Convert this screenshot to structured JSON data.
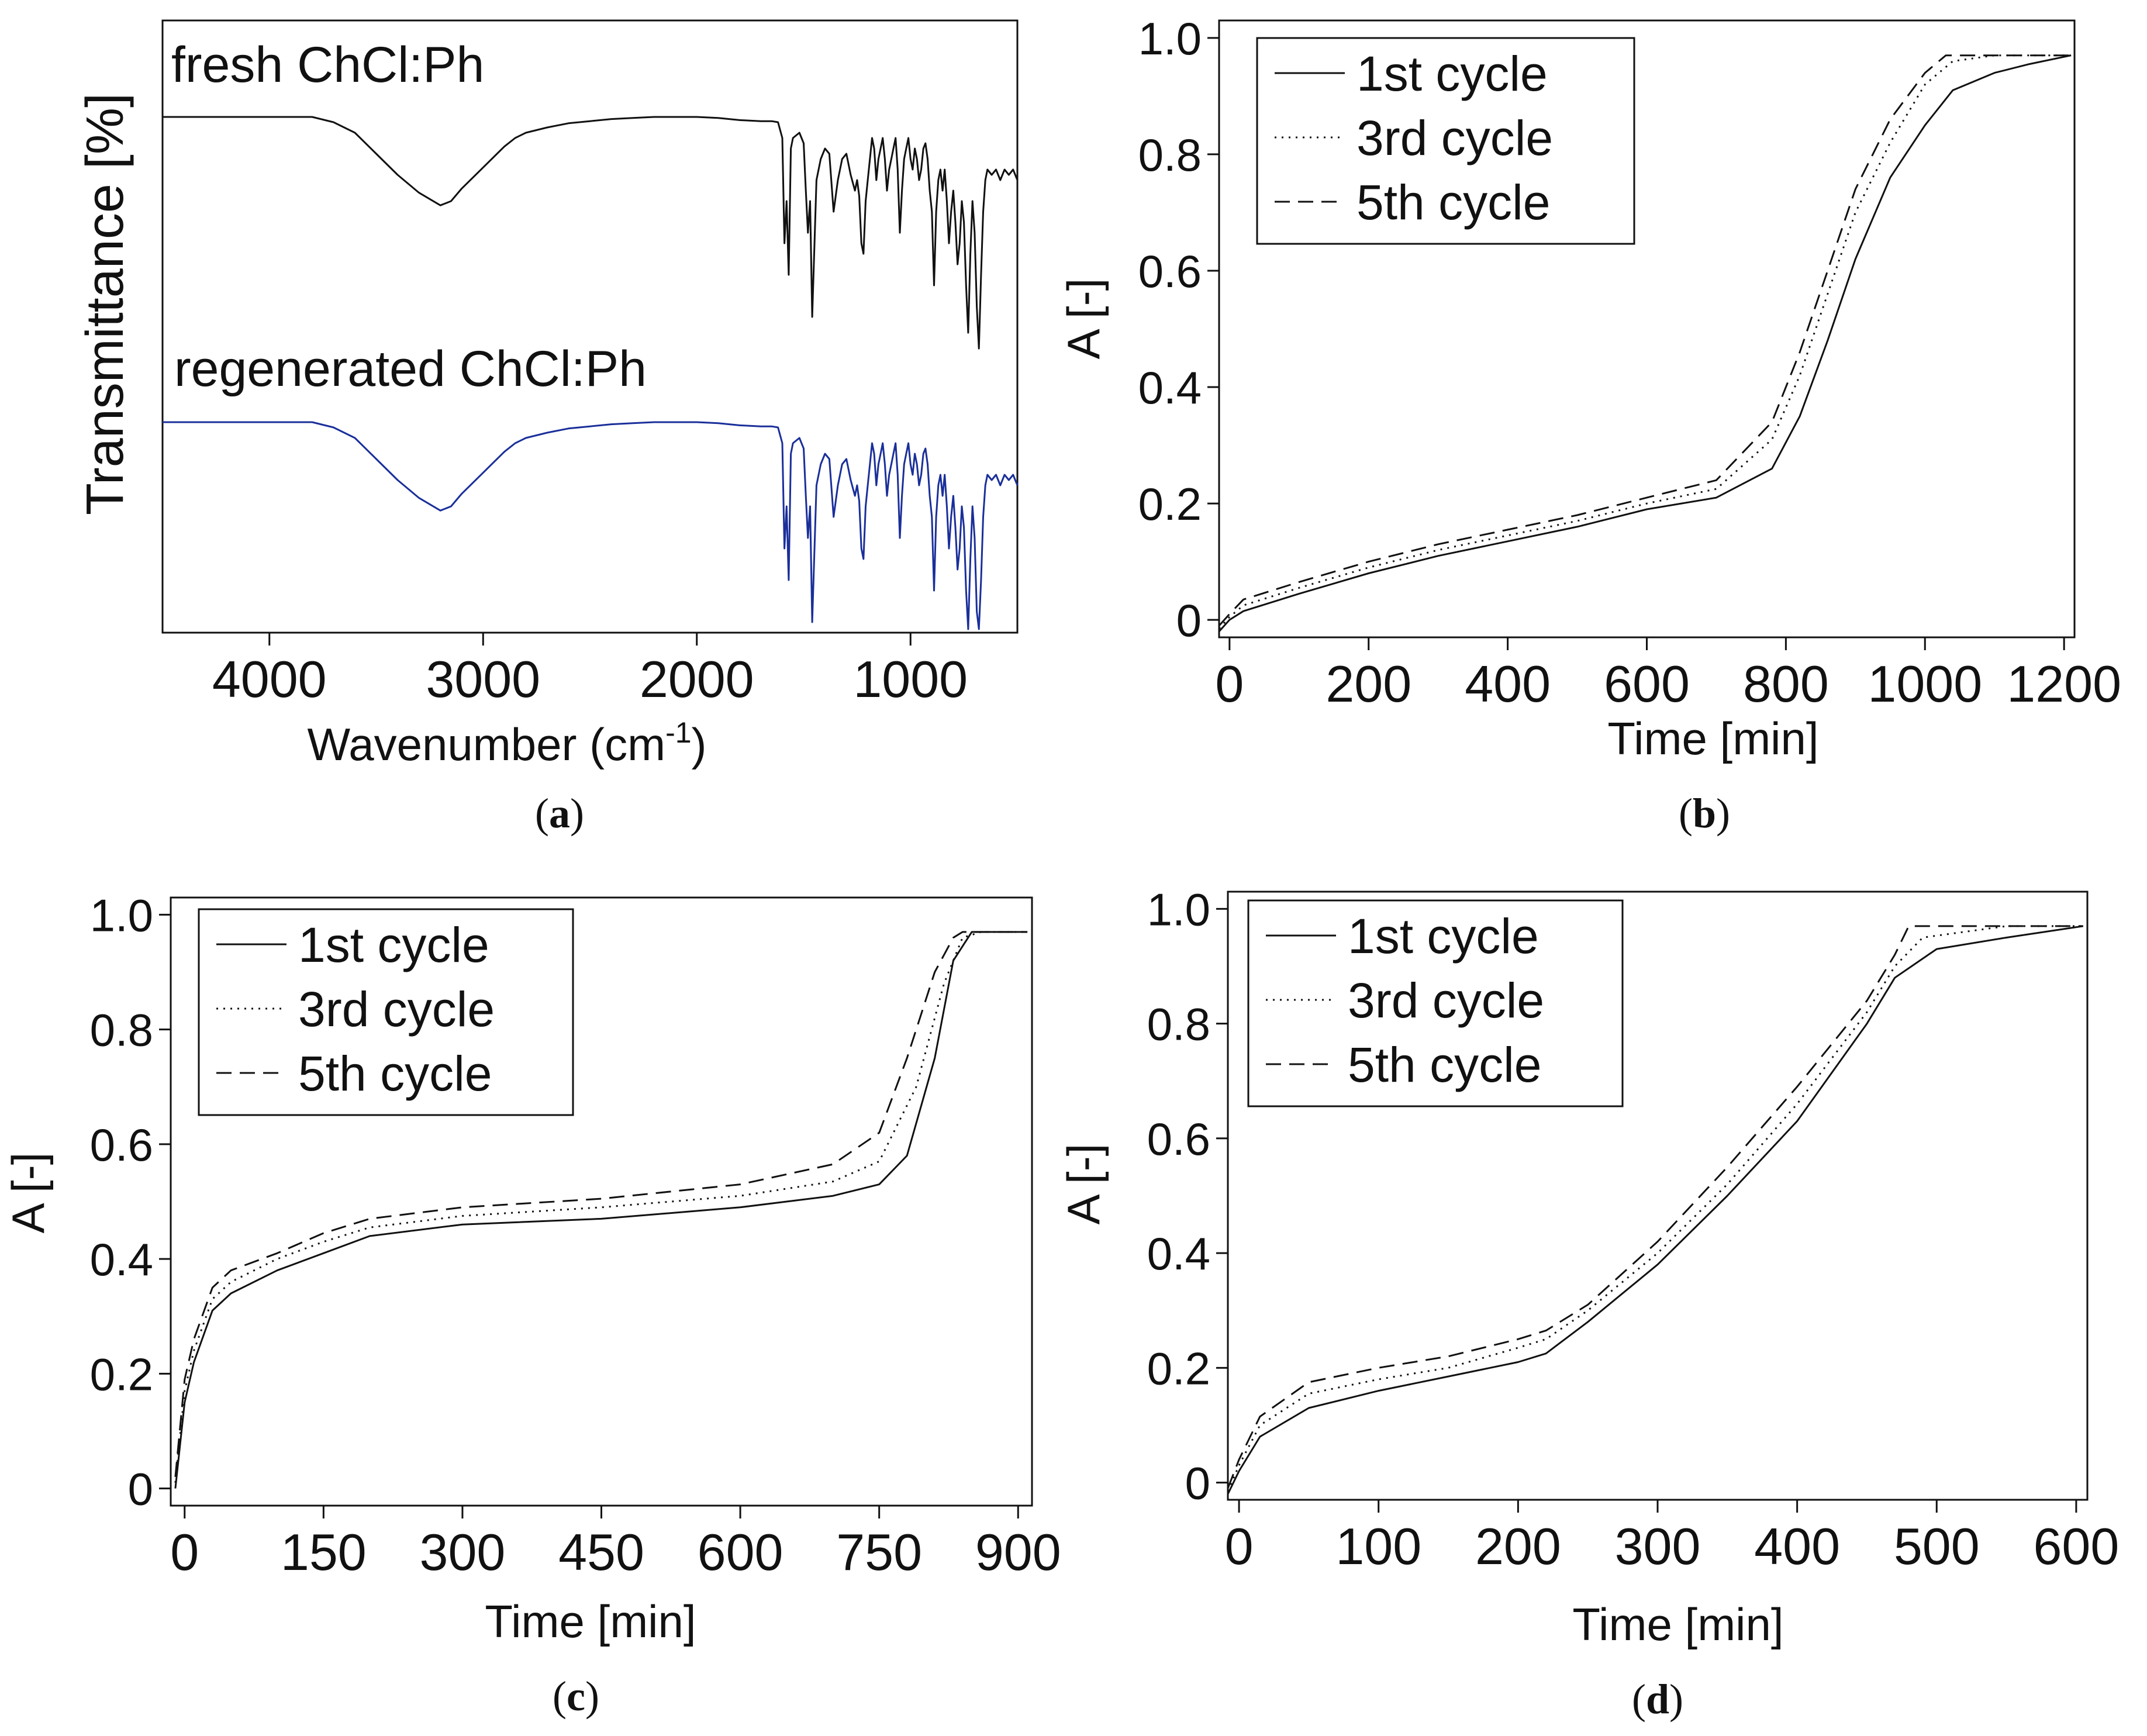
{
  "colors": {
    "axis": "#111111",
    "fresh": "#111111",
    "regenerated": "#1a2f9a",
    "background": "#ffffff"
  },
  "panels": {
    "a": {
      "caption_letter": "a",
      "xlabel": "Wavenumber (cm",
      "xlabel_sup": "-1",
      "xlabel_end": ")",
      "ylabel": "Transmittance [%]"
    },
    "b": {
      "caption_letter": "b",
      "xlabel": "Time [min]",
      "ylabel": "A [-]"
    },
    "c": {
      "caption_letter": "c",
      "xlabel": "Time [min]",
      "ylabel": "A [-]"
    },
    "d": {
      "caption_letter": "d",
      "xlabel": "Time [min]",
      "ylabel": "A [-]"
    }
  },
  "chart_data": [
    {
      "panel": "a",
      "type": "line",
      "x_reversed": true,
      "xlim": [
        4500,
        500
      ],
      "xticks": [
        4000,
        3000,
        2000,
        1000
      ],
      "y_ticks_shown": false,
      "series": [
        {
          "name": "fresh ChCl:Ph",
          "color": "#111111",
          "x": [
            4500,
            4000,
            3800,
            3700,
            3600,
            3500,
            3400,
            3300,
            3200,
            3150,
            3100,
            3050,
            3000,
            2950,
            2900,
            2850,
            2800,
            2700,
            2600,
            2500,
            2400,
            2300,
            2200,
            2100,
            2000,
            1900,
            1800,
            1700,
            1650,
            1620,
            1600,
            1590,
            1580,
            1570,
            1560,
            1550,
            1520,
            1500,
            1490,
            1480,
            1470,
            1460,
            1440,
            1420,
            1400,
            1380,
            1360,
            1340,
            1320,
            1300,
            1280,
            1260,
            1250,
            1240,
            1230,
            1220,
            1210,
            1200,
            1190,
            1180,
            1170,
            1160,
            1150,
            1140,
            1130,
            1120,
            1110,
            1100,
            1090,
            1080,
            1070,
            1060,
            1050,
            1040,
            1030,
            1020,
            1010,
            1000,
            990,
            980,
            970,
            960,
            950,
            940,
            930,
            920,
            910,
            900,
            890,
            880,
            870,
            860,
            850,
            840,
            830,
            820,
            810,
            800,
            790,
            780,
            770,
            760,
            750,
            740,
            730,
            720,
            710,
            700,
            690,
            680,
            670,
            660,
            650,
            640,
            620,
            600,
            580,
            560,
            540,
            520,
            500
          ],
          "values": [
            0.0,
            0.0,
            0.0,
            0.05,
            0.15,
            0.35,
            0.55,
            0.72,
            0.84,
            0.8,
            0.68,
            0.58,
            0.48,
            0.38,
            0.28,
            0.2,
            0.15,
            0.1,
            0.06,
            0.04,
            0.02,
            0.01,
            0.0,
            0.0,
            0.0,
            0.01,
            0.03,
            0.04,
            0.04,
            0.05,
            0.2,
            1.2,
            0.8,
            1.5,
            0.3,
            0.2,
            0.15,
            0.25,
            0.7,
            1.1,
            0.8,
            1.9,
            0.6,
            0.4,
            0.3,
            0.35,
            0.9,
            0.6,
            0.4,
            0.35,
            0.55,
            0.7,
            0.6,
            0.75,
            1.2,
            1.3,
            0.8,
            0.6,
            0.4,
            0.2,
            0.3,
            0.6,
            0.4,
            0.3,
            0.2,
            0.4,
            0.7,
            0.5,
            0.4,
            0.3,
            0.2,
            0.5,
            1.1,
            0.7,
            0.4,
            0.3,
            0.2,
            0.4,
            0.5,
            0.3,
            0.4,
            0.6,
            0.5,
            0.3,
            0.25,
            0.4,
            0.7,
            0.9,
            1.6,
            0.9,
            0.6,
            0.5,
            0.7,
            0.5,
            0.8,
            1.2,
            0.9,
            0.7,
            1.0,
            1.4,
            1.2,
            0.8,
            1.0,
            1.6,
            2.05,
            1.3,
            0.8,
            1.1,
            1.8,
            2.2,
            1.5,
            0.9,
            0.6,
            0.5,
            0.55,
            0.5,
            0.6,
            0.5,
            0.55,
            0.5,
            0.6
          ]
        },
        {
          "name": "regenerated ChCl:Ph",
          "color": "#1a2f9a",
          "x": [
            4500,
            4000,
            3800,
            3700,
            3600,
            3500,
            3400,
            3300,
            3200,
            3150,
            3100,
            3050,
            3000,
            2950,
            2900,
            2850,
            2800,
            2700,
            2600,
            2500,
            2400,
            2300,
            2200,
            2100,
            2000,
            1900,
            1800,
            1700,
            1650,
            1620,
            1600,
            1590,
            1580,
            1570,
            1560,
            1550,
            1520,
            1500,
            1490,
            1480,
            1470,
            1460,
            1440,
            1420,
            1400,
            1380,
            1360,
            1340,
            1320,
            1300,
            1280,
            1260,
            1250,
            1240,
            1230,
            1220,
            1210,
            1200,
            1190,
            1180,
            1170,
            1160,
            1150,
            1140,
            1130,
            1120,
            1110,
            1100,
            1090,
            1080,
            1070,
            1060,
            1050,
            1040,
            1030,
            1020,
            1010,
            1000,
            990,
            980,
            970,
            960,
            950,
            940,
            930,
            920,
            910,
            900,
            890,
            880,
            870,
            860,
            850,
            840,
            830,
            820,
            810,
            800,
            790,
            780,
            770,
            760,
            750,
            740,
            730,
            720,
            710,
            700,
            690,
            680,
            670,
            660,
            650,
            640,
            620,
            600,
            580,
            560,
            540,
            520,
            500
          ],
          "values": [
            0.0,
            0.0,
            0.0,
            0.05,
            0.15,
            0.35,
            0.55,
            0.72,
            0.84,
            0.8,
            0.68,
            0.58,
            0.48,
            0.38,
            0.28,
            0.2,
            0.15,
            0.1,
            0.06,
            0.04,
            0.02,
            0.01,
            0.0,
            0.0,
            0.0,
            0.01,
            0.03,
            0.04,
            0.04,
            0.05,
            0.2,
            1.2,
            0.8,
            1.5,
            0.3,
            0.2,
            0.15,
            0.25,
            0.7,
            1.1,
            0.8,
            1.9,
            0.6,
            0.4,
            0.3,
            0.35,
            0.9,
            0.6,
            0.4,
            0.35,
            0.55,
            0.7,
            0.6,
            0.75,
            1.2,
            1.3,
            0.8,
            0.6,
            0.4,
            0.2,
            0.3,
            0.6,
            0.4,
            0.3,
            0.2,
            0.4,
            0.7,
            0.5,
            0.4,
            0.3,
            0.2,
            0.5,
            1.1,
            0.7,
            0.4,
            0.3,
            0.2,
            0.4,
            0.5,
            0.3,
            0.4,
            0.6,
            0.5,
            0.3,
            0.25,
            0.4,
            0.7,
            0.9,
            1.6,
            0.9,
            0.6,
            0.5,
            0.7,
            0.5,
            0.8,
            1.2,
            0.9,
            0.7,
            1.0,
            1.4,
            1.2,
            0.8,
            1.0,
            1.6,
            2.05,
            1.3,
            0.8,
            1.1,
            1.8,
            2.2,
            1.5,
            0.9,
            0.6,
            0.5,
            0.55,
            0.5,
            0.6,
            0.5,
            0.55,
            0.5,
            0.6
          ]
        }
      ]
    },
    {
      "panel": "b",
      "type": "line",
      "xlim": [
        -15,
        1215
      ],
      "ylim": [
        -0.03,
        1.03
      ],
      "xticks": [
        0,
        200,
        400,
        600,
        800,
        1000,
        1200
      ],
      "yticks": [
        0,
        0.2,
        0.4,
        0.6,
        0.8,
        1.0
      ],
      "ytick_labels": [
        "0",
        "0.2",
        "0.4",
        "0.6",
        "0.8",
        "1.0"
      ],
      "legend": "top-left",
      "series": [
        {
          "name": "1st cycle",
          "style": "solid",
          "x": [
            -15,
            0,
            20,
            100,
            200,
            300,
            400,
            500,
            600,
            700,
            780,
            820,
            860,
            900,
            950,
            1000,
            1040,
            1100,
            1150,
            1210
          ],
          "values": [
            -0.02,
            0.0,
            0.015,
            0.045,
            0.08,
            0.11,
            0.135,
            0.16,
            0.19,
            0.21,
            0.26,
            0.35,
            0.48,
            0.62,
            0.76,
            0.85,
            0.91,
            0.94,
            0.955,
            0.97
          ]
        },
        {
          "name": "3rd cycle",
          "style": "dotted",
          "x": [
            -15,
            0,
            20,
            100,
            200,
            300,
            400,
            500,
            600,
            700,
            780,
            820,
            860,
            900,
            950,
            1000,
            1040,
            1100,
            1150,
            1210
          ],
          "values": [
            -0.015,
            0.005,
            0.025,
            0.055,
            0.09,
            0.12,
            0.145,
            0.17,
            0.2,
            0.225,
            0.31,
            0.42,
            0.56,
            0.7,
            0.82,
            0.92,
            0.96,
            0.97,
            0.97,
            0.97
          ]
        },
        {
          "name": "5th cycle",
          "style": "dashed",
          "x": [
            -15,
            0,
            20,
            100,
            200,
            300,
            400,
            500,
            600,
            700,
            780,
            820,
            860,
            900,
            950,
            1000,
            1030,
            1100,
            1150,
            1210
          ],
          "values": [
            -0.01,
            0.01,
            0.035,
            0.065,
            0.1,
            0.13,
            0.155,
            0.18,
            0.21,
            0.24,
            0.34,
            0.46,
            0.6,
            0.74,
            0.86,
            0.94,
            0.97,
            0.97,
            0.97,
            0.97
          ]
        }
      ]
    },
    {
      "panel": "c",
      "type": "line",
      "xlim": [
        -15,
        915
      ],
      "ylim": [
        -0.03,
        1.03
      ],
      "xticks": [
        0,
        150,
        300,
        450,
        600,
        750,
        900
      ],
      "yticks": [
        0,
        0.2,
        0.4,
        0.6,
        0.8,
        1.0
      ],
      "ytick_labels": [
        "0",
        "0.2",
        "0.4",
        "0.6",
        "0.8",
        "1.0"
      ],
      "legend": "top-left",
      "series": [
        {
          "name": "1st cycle",
          "style": "solid",
          "x": [
            -10,
            0,
            10,
            30,
            50,
            100,
            150,
            200,
            300,
            450,
            600,
            700,
            750,
            780,
            810,
            830,
            850,
            870,
            910
          ],
          "values": [
            0.0,
            0.15,
            0.22,
            0.31,
            0.34,
            0.38,
            0.41,
            0.44,
            0.46,
            0.47,
            0.49,
            0.51,
            0.53,
            0.58,
            0.75,
            0.92,
            0.97,
            0.97,
            0.97
          ]
        },
        {
          "name": "3rd cycle",
          "style": "dotted",
          "x": [
            -10,
            0,
            10,
            30,
            50,
            100,
            150,
            200,
            300,
            450,
            600,
            700,
            750,
            790,
            820,
            840,
            860,
            880,
            910
          ],
          "values": [
            0.01,
            0.17,
            0.24,
            0.33,
            0.36,
            0.4,
            0.43,
            0.455,
            0.475,
            0.49,
            0.51,
            0.535,
            0.57,
            0.7,
            0.88,
            0.96,
            0.97,
            0.97,
            0.97
          ]
        },
        {
          "name": "5th cycle",
          "style": "dashed",
          "x": [
            -10,
            0,
            10,
            30,
            50,
            100,
            150,
            200,
            300,
            450,
            600,
            700,
            750,
            780,
            810,
            830,
            840,
            860,
            910
          ],
          "values": [
            0.02,
            0.19,
            0.26,
            0.35,
            0.38,
            0.41,
            0.445,
            0.47,
            0.49,
            0.505,
            0.53,
            0.565,
            0.62,
            0.75,
            0.9,
            0.96,
            0.97,
            0.97,
            0.97
          ]
        }
      ]
    },
    {
      "panel": "d",
      "type": "line",
      "xlim": [
        -8,
        608
      ],
      "ylim": [
        -0.03,
        1.03
      ],
      "xticks": [
        0,
        100,
        200,
        300,
        400,
        500,
        600
      ],
      "yticks": [
        0,
        0.2,
        0.4,
        0.6,
        0.8,
        1.0
      ],
      "ytick_labels": [
        "0",
        "0.2",
        "0.4",
        "0.6",
        "0.8",
        "1.0"
      ],
      "legend": "top-left",
      "series": [
        {
          "name": "1st cycle",
          "style": "solid",
          "x": [
            -8,
            0,
            15,
            50,
            100,
            150,
            200,
            220,
            250,
            300,
            350,
            400,
            450,
            470,
            500,
            550,
            605
          ],
          "values": [
            -0.02,
            0.02,
            0.08,
            0.13,
            0.16,
            0.185,
            0.21,
            0.225,
            0.28,
            0.38,
            0.5,
            0.63,
            0.8,
            0.88,
            0.93,
            0.95,
            0.97
          ]
        },
        {
          "name": "3rd cycle",
          "style": "dotted",
          "x": [
            -8,
            0,
            15,
            50,
            100,
            150,
            200,
            220,
            250,
            300,
            350,
            400,
            450,
            470,
            490,
            550,
            605
          ],
          "values": [
            -0.015,
            0.03,
            0.1,
            0.155,
            0.18,
            0.2,
            0.235,
            0.25,
            0.3,
            0.4,
            0.52,
            0.66,
            0.82,
            0.9,
            0.95,
            0.97,
            0.97
          ]
        },
        {
          "name": "5th cycle",
          "style": "dashed",
          "x": [
            -8,
            0,
            15,
            50,
            100,
            150,
            200,
            220,
            250,
            300,
            350,
            400,
            450,
            470,
            480,
            550,
            605
          ],
          "values": [
            -0.01,
            0.04,
            0.115,
            0.175,
            0.2,
            0.22,
            0.25,
            0.265,
            0.31,
            0.42,
            0.55,
            0.69,
            0.84,
            0.92,
            0.97,
            0.97,
            0.97
          ]
        }
      ]
    }
  ]
}
